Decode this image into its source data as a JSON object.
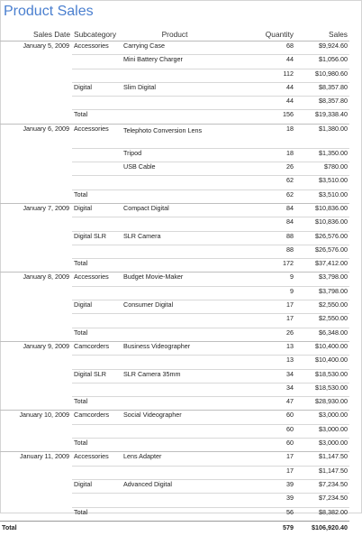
{
  "report": {
    "title": "Product Sales",
    "headers": [
      "Sales Date",
      "Subcategory",
      "Product",
      "Quantity",
      "Sales"
    ],
    "rows": [
      {
        "date": "January 5, 2009",
        "sub": "Accessories",
        "prod": "Carrying Case",
        "qty": "68",
        "sales": "$9,924.60",
        "cls": "grp"
      },
      {
        "date": "",
        "sub": "",
        "prod": "Mini Battery Charger",
        "qty": "44",
        "sales": "$1,056.00",
        "cls": "rule"
      },
      {
        "date": "",
        "sub": "",
        "prod": "",
        "qty": "112",
        "sales": "$10,980.60",
        "cls": "rule"
      },
      {
        "date": "",
        "sub": "Digital",
        "prod": "Slim Digital",
        "qty": "44",
        "sales": "$8,357.80",
        "cls": "rule"
      },
      {
        "date": "",
        "sub": "",
        "prod": "",
        "qty": "44",
        "sales": "$8,357.80",
        "cls": "rule"
      },
      {
        "date": "",
        "sub": "Total",
        "prod": "",
        "qty": "156",
        "sales": "$19,338.40",
        "cls": "rule"
      },
      {
        "date": "January 6, 2009",
        "sub": "Accessories",
        "prod": "Telephoto Conversion Lens",
        "qty": "18",
        "sales": "$1,380.00",
        "cls": "grp tall"
      },
      {
        "date": "",
        "sub": "",
        "prod": "Tripod",
        "qty": "18",
        "sales": "$1,350.00",
        "cls": "rule"
      },
      {
        "date": "",
        "sub": "",
        "prod": "USB Cable",
        "qty": "26",
        "sales": "$780.00",
        "cls": "rule"
      },
      {
        "date": "",
        "sub": "",
        "prod": "",
        "qty": "62",
        "sales": "$3,510.00",
        "cls": "rule"
      },
      {
        "date": "",
        "sub": "Total",
        "prod": "",
        "qty": "62",
        "sales": "$3,510.00",
        "cls": "rule"
      },
      {
        "date": "January 7, 2009",
        "sub": "Digital",
        "prod": "Compact Digital",
        "qty": "84",
        "sales": "$10,836.00",
        "cls": "grp"
      },
      {
        "date": "",
        "sub": "",
        "prod": "",
        "qty": "84",
        "sales": "$10,836.00",
        "cls": "rule"
      },
      {
        "date": "",
        "sub": "Digital SLR",
        "prod": "SLR Camera",
        "qty": "88",
        "sales": "$26,576.00",
        "cls": "rule"
      },
      {
        "date": "",
        "sub": "",
        "prod": "",
        "qty": "88",
        "sales": "$26,576.00",
        "cls": "rule"
      },
      {
        "date": "",
        "sub": "Total",
        "prod": "",
        "qty": "172",
        "sales": "$37,412.00",
        "cls": "rule"
      },
      {
        "date": "January 8, 2009",
        "sub": "Accessories",
        "prod": "Budget Movie-Maker",
        "qty": "9",
        "sales": "$3,798.00",
        "cls": "grp"
      },
      {
        "date": "",
        "sub": "",
        "prod": "",
        "qty": "9",
        "sales": "$3,798.00",
        "cls": "rule"
      },
      {
        "date": "",
        "sub": "Digital",
        "prod": "Consumer Digital",
        "qty": "17",
        "sales": "$2,550.00",
        "cls": "rule"
      },
      {
        "date": "",
        "sub": "",
        "prod": "",
        "qty": "17",
        "sales": "$2,550.00",
        "cls": "rule"
      },
      {
        "date": "",
        "sub": "Total",
        "prod": "",
        "qty": "26",
        "sales": "$6,348.00",
        "cls": "rule"
      },
      {
        "date": "January 9, 2009",
        "sub": "Camcorders",
        "prod": "Business Videographer",
        "qty": "13",
        "sales": "$10,400.00",
        "cls": "grp"
      },
      {
        "date": "",
        "sub": "",
        "prod": "",
        "qty": "13",
        "sales": "$10,400.00",
        "cls": "rule"
      },
      {
        "date": "",
        "sub": "Digital SLR",
        "prod": "SLR Camera 35mm",
        "qty": "34",
        "sales": "$18,530.00",
        "cls": "rule"
      },
      {
        "date": "",
        "sub": "",
        "prod": "",
        "qty": "34",
        "sales": "$18,530.00",
        "cls": "rule"
      },
      {
        "date": "",
        "sub": "Total",
        "prod": "",
        "qty": "47",
        "sales": "$28,930.00",
        "cls": "rule"
      },
      {
        "date": "January 10, 2009",
        "sub": "Camcorders",
        "prod": "Social Videographer",
        "qty": "60",
        "sales": "$3,000.00",
        "cls": "grp"
      },
      {
        "date": "",
        "sub": "",
        "prod": "",
        "qty": "60",
        "sales": "$3,000.00",
        "cls": "rule"
      },
      {
        "date": "",
        "sub": "Total",
        "prod": "",
        "qty": "60",
        "sales": "$3,000.00",
        "cls": "rule"
      },
      {
        "date": "January 11, 2009",
        "sub": "Accessories",
        "prod": "Lens Adapter",
        "qty": "17",
        "sales": "$1,147.50",
        "cls": "grp"
      },
      {
        "date": "",
        "sub": "",
        "prod": "",
        "qty": "17",
        "sales": "$1,147.50",
        "cls": "rule"
      },
      {
        "date": "",
        "sub": "Digital",
        "prod": "Advanced Digital",
        "qty": "39",
        "sales": "$7,234.50",
        "cls": "rule"
      },
      {
        "date": "",
        "sub": "",
        "prod": "",
        "qty": "39",
        "sales": "$7,234.50",
        "cls": "rule"
      },
      {
        "date": "",
        "sub": "Total",
        "prod": "",
        "qty": "56",
        "sales": "$8,382.00",
        "cls": "rule"
      }
    ],
    "grand_total": {
      "label": "Total",
      "qty": "579",
      "sales": "$106,920.40"
    }
  }
}
